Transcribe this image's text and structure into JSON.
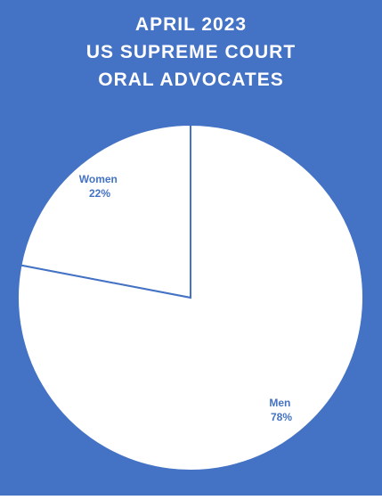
{
  "title_lines": [
    "APRIL 2023",
    "US SUPREME COURT",
    "ORAL ADVOCATES"
  ],
  "colors": {
    "background": "#4472C4",
    "slice_fill": "#FFFFFF",
    "slice_border": "#4472C4",
    "label": "#4472C4"
  },
  "chart_data": {
    "type": "pie",
    "title": "APRIL 2023 US SUPREME COURT ORAL ADVOCATES",
    "categories": [
      "Women",
      "Men"
    ],
    "values": [
      22,
      78
    ],
    "labels": [
      "Women\n22%",
      "Men\n78%"
    ],
    "legend": "none",
    "data_labels": "inside slices"
  }
}
